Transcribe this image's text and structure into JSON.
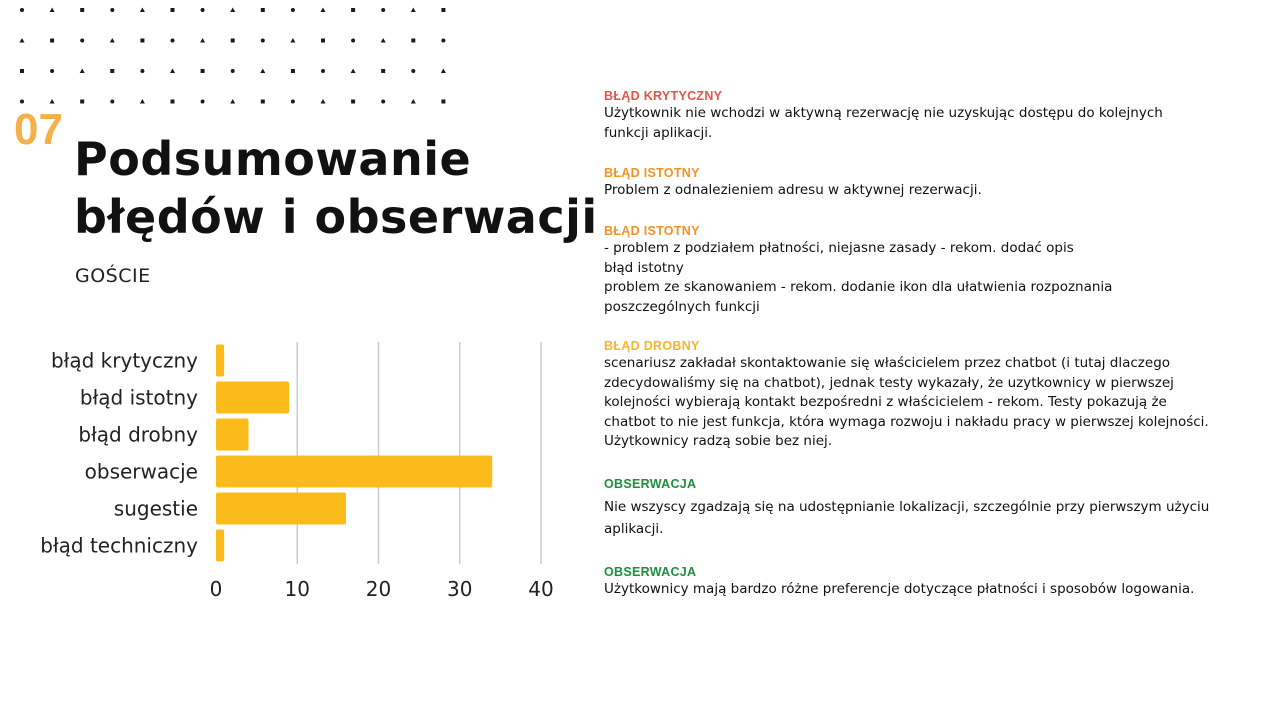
{
  "slide": {
    "number": "07",
    "title_line1": "Podsumowanie",
    "title_line2": "błędów i obserwacji",
    "subtitle": "GOŚCIE"
  },
  "colors": {
    "number": "#F6B04A",
    "bar": "#FBBC1B",
    "critical": "#E8534A",
    "significant": "#F29227",
    "minor": "#F5B62A",
    "observation": "#1E8E3E"
  },
  "chart_data": {
    "type": "bar",
    "orientation": "horizontal",
    "categories": [
      "błąd krytyczny",
      "błąd istotny",
      "błąd drobny",
      "obserwacje",
      "sugestie",
      "błąd techniczny"
    ],
    "values": [
      1,
      9,
      4,
      34,
      16,
      1
    ],
    "xlim": [
      0,
      40
    ],
    "xticks": [
      "0",
      "10",
      "20",
      "30",
      "40"
    ],
    "grid": "vertical",
    "title": "",
    "xlabel": "",
    "ylabel": ""
  },
  "notes": [
    {
      "category": "BŁĄD KRYTYCZNY",
      "color": "#E8534A",
      "text": "Użytkownik nie wchodzi w aktywną rezerwację nie uzyskując dostępu do kolejnych\nfunkcji aplikacji."
    },
    {
      "category": "BŁĄD ISTOTNY",
      "color": "#F29227",
      "text": "Problem z odnalezieniem adresu w aktywnej rezerwacji."
    },
    {
      "category": "BŁĄD ISTOTNY",
      "color": "#F29227",
      "text": " - problem z podziałem płatności, niejasne zasady - rekom. dodać opis\nbłąd istotny\nproblem ze skanowaniem - rekom. dodanie ikon dla ułatwienia rozpoznania\nposzczególnych funkcji"
    },
    {
      "category": "BŁĄD DROBNY",
      "color": "#F5B62A",
      "text": "scenariusz zakładał skontaktowanie się właścicielem przez chatbot (i tutaj dlaczego\nzdecydowaliśmy się na chatbot), jednak testy wykazały, że uzytkownicy w pierwszej\nkolejności wybierają kontakt bezpośredni z właścicielem - rekom. Testy pokazują że\nchatbot to nie jest funkcja, która wymaga rozwoju i nakładu pracy w pierwszej kolejności.\nUżytkownicy radzą sobie bez niej."
    },
    {
      "category": "OBSERWACJA",
      "color": "#1E8E3E",
      "text": "Nie wszyscy zgadzają się na udostępnianie lokalizacji, szczególnie przy pierwszym użyciu\naplikacji."
    },
    {
      "category": "OBSERWACJA",
      "color": "#1E8E3E",
      "text": "Użytkownicy mają bardzo różne preferencje dotyczące płatności i sposobów logowania."
    }
  ]
}
